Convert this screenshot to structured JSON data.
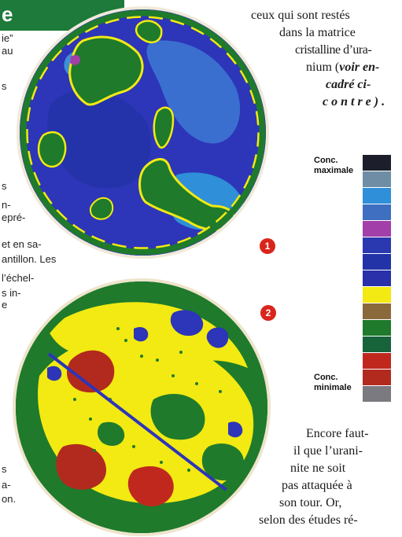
{
  "heading": {
    "letter": "e"
  },
  "left_column": [
    "ie”",
    "au",
    "s",
    "s",
    "n-",
    "epré-",
    "et en sa-",
    "antillon. Les",
    "l’échel-",
    "s in-",
    "e",
    "s",
    "a-",
    "on."
  ],
  "article_top": [
    "ceux qui sont restés",
    "dans la matrice",
    "cristalline d’ura-",
    "nium (",
    "voir en-",
    "cadré   ci-",
    "c o n t r e ) ."
  ],
  "article_bottom": [
    "Encore faut-",
    "il que l’urani-",
    "nite ne soit",
    "pas attaquée à",
    "son  tour.  Or,",
    "selon des études ré-"
  ],
  "figure": {
    "badge_1": "1",
    "badge_2": "2",
    "scale_label_top": [
      "Conc.",
      "maximale"
    ],
    "scale_label_bottom": [
      "Conc.",
      "minimale"
    ],
    "scale_colors": [
      "#1c1f2b",
      "#6f8ea6",
      "#2f8fd8",
      "#3f6fc0",
      "#a23fa8",
      "#2b39b0",
      "#2233a8",
      "#2a2faa",
      "#f2ea12",
      "#8a6a3a",
      "#1f7a2c",
      "#17633a",
      "#c0281e",
      "#b22a1e",
      "#7a7a80"
    ]
  }
}
